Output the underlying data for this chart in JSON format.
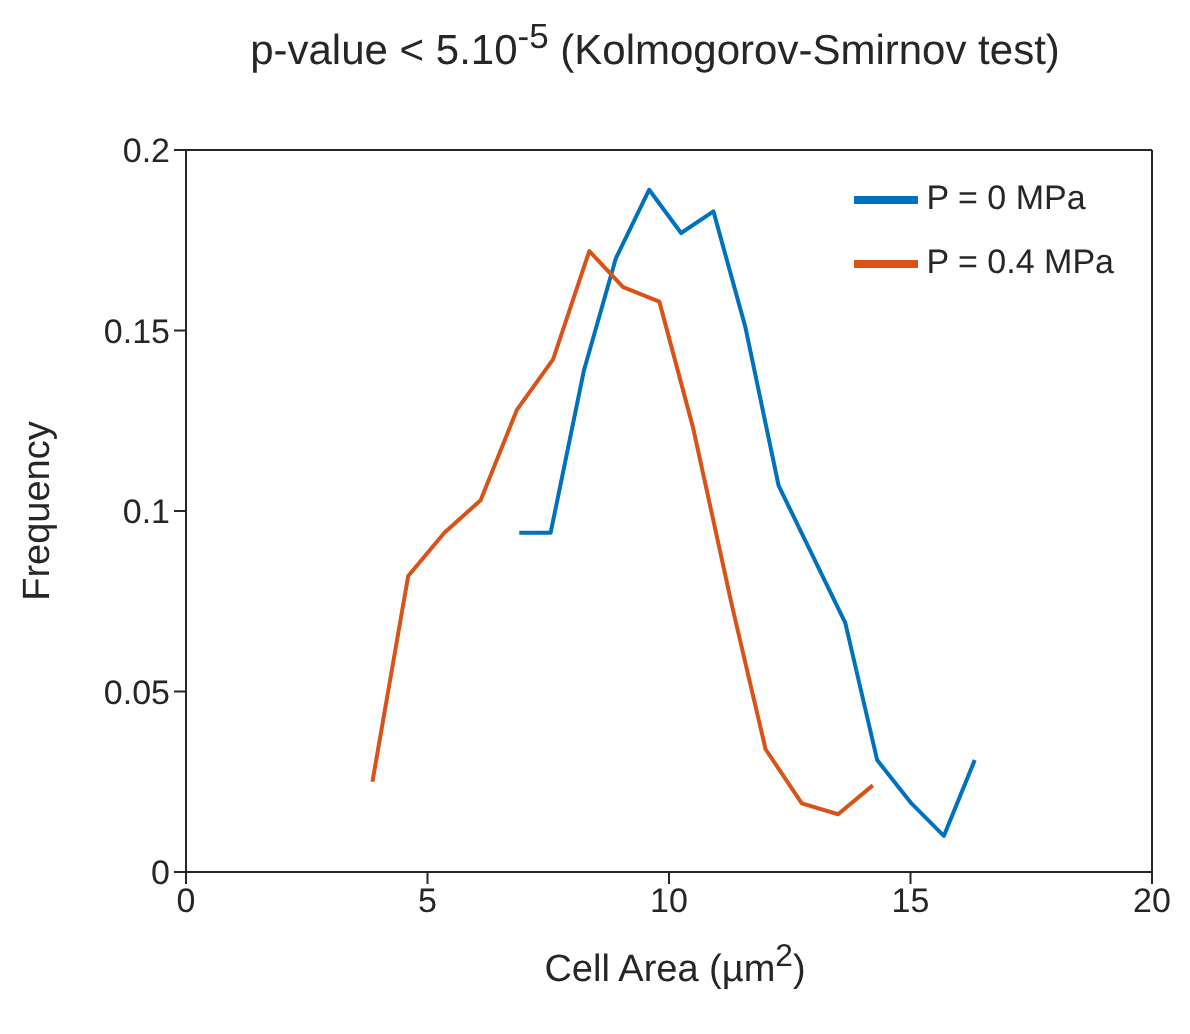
{
  "chart_data": {
    "type": "line",
    "title": "p-value < 5.10$^{-5}$ (Kolmogorov-Smirnov test)",
    "xlabel": "Cell Area (µm$^{2}$)",
    "ylabel": "Frequency",
    "xlim": [
      0,
      20
    ],
    "xticks": [
      0,
      5,
      10,
      15,
      20
    ],
    "ylim": [
      0,
      0.2
    ],
    "yticks": [
      0,
      0.05,
      0.1,
      0.15,
      0.2
    ],
    "legend": "top right",
    "marker": "none",
    "line_style": "solid",
    "series": [
      {
        "name": "P = 0 MPa",
        "color": "#0072bd",
        "x": [
          6.9,
          7.55,
          8.24,
          8.9,
          9.59,
          10.25,
          10.92,
          11.58,
          12.27,
          13.65,
          14.31,
          15.02,
          15.69,
          16.33
        ],
        "values": [
          0.094,
          0.094,
          0.139,
          0.17,
          0.189,
          0.177,
          0.183,
          0.151,
          0.107,
          0.069,
          0.031,
          0.019,
          0.01,
          0.031
        ]
      },
      {
        "name": "P = 0.4 MPa",
        "color": "#d95319",
        "x": [
          3.86,
          4.6,
          5.35,
          6.1,
          6.85,
          7.6,
          8.35,
          9.05,
          9.8,
          10.5,
          11.3,
          12.0,
          12.75,
          13.5,
          14.22
        ],
        "values": [
          0.025,
          0.082,
          0.094,
          0.103,
          0.128,
          0.142,
          0.172,
          0.162,
          0.158,
          0.123,
          0.074,
          0.034,
          0.019,
          0.016,
          0.024
        ]
      }
    ]
  }
}
